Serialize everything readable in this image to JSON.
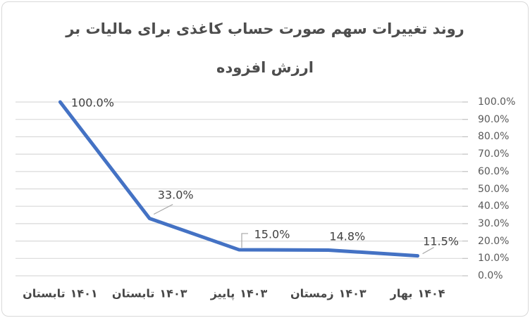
{
  "title": {
    "line1": "روند تغییرات سهم صورت حساب کاغذی برای مالیات بر",
    "line2": "ارزش افزوده"
  },
  "chart_data": {
    "type": "line",
    "title": "روند تغییرات سهم صورت حساب کاغذی برای مالیات بر ارزش افزوده",
    "categories": [
      "تابستان ۱۴۰۱",
      "تابستان ۱۴۰۳",
      "پاییز ۱۴۰۳",
      "زمستان ۱۴۰۳",
      "بهار ۱۴۰۴"
    ],
    "category_parts": [
      {
        "season": "تابستان",
        "year": "۱۴۰۱"
      },
      {
        "season": "تابستان",
        "year": "۱۴۰۳"
      },
      {
        "season": "پاییز",
        "year": "۱۴۰۳"
      },
      {
        "season": "زمستان",
        "year": "۱۴۰۳"
      },
      {
        "season": "بهار",
        "year": "۱۴۰۴"
      }
    ],
    "values": [
      100.0,
      33.0,
      15.0,
      14.8,
      11.5
    ],
    "data_labels": [
      "100.0%",
      "33.0%",
      "15.0%",
      "14.8%",
      "11.5%"
    ],
    "y_ticks": [
      "100.0%",
      "90.0%",
      "80.0%",
      "70.0%",
      "60.0%",
      "50.0%",
      "40.0%",
      "30.0%",
      "20.0%",
      "10.0%",
      "0.0%"
    ],
    "ylim": [
      0,
      100
    ],
    "grid": true,
    "y_axis_position": "right",
    "legend": "none",
    "xlabel": "",
    "ylabel": ""
  },
  "colors": {
    "line": "#4472C4",
    "gridline": "#D9D9D9",
    "tick": "#C0C0C0",
    "leader": "#A6A6A6",
    "title_text": "#4d4d4d",
    "axis_text": "#595959",
    "x_label_text": "#474747",
    "data_label_text": "#404040",
    "border": "#D9D9D9",
    "background": "#FFFFFF"
  }
}
